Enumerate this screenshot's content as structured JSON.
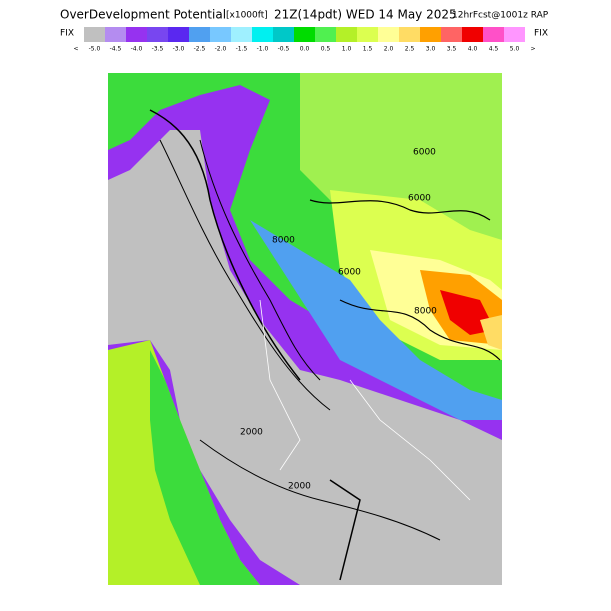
{
  "header": {
    "title": "OverDevelopment Potential",
    "units": "[x1000ft]",
    "valid": "21Z(14pdt) WED 14 May 2025",
    "forecast": "12hrFcst@1001z RAP",
    "fix_left": "FIX",
    "fix_right": "FIX"
  },
  "legend": {
    "below": "<",
    "above": ">",
    "labels": [
      "-5.0",
      "-4.5",
      "-4.0",
      "-3.5",
      "-3.0",
      "-2.5",
      "-2.0",
      "-1.5",
      "-1.0",
      "-0.5",
      "0.0",
      "0.5",
      "1.0",
      "1.5",
      "2.0",
      "2.5",
      "3.0",
      "3.5",
      "4.0",
      "4.5",
      "5.0"
    ],
    "colors": [
      "#c0c0c0",
      "#b48cf0",
      "#9632f0",
      "#7846f0",
      "#5a28f0",
      "#50a0f0",
      "#78c8ff",
      "#9ff0ff",
      "#00f0f0",
      "#00c8c8",
      "#00dc00",
      "#50f050",
      "#b4f028",
      "#dcff50",
      "#ffff96",
      "#ffdc64",
      "#ffa000",
      "#ff6464",
      "#f00000",
      "#ff50c8",
      "#ff96ff"
    ]
  },
  "map": {
    "contour_labels": [
      "6000",
      "6000",
      "6000",
      "8000",
      "8000",
      "2000",
      "2000"
    ]
  }
}
